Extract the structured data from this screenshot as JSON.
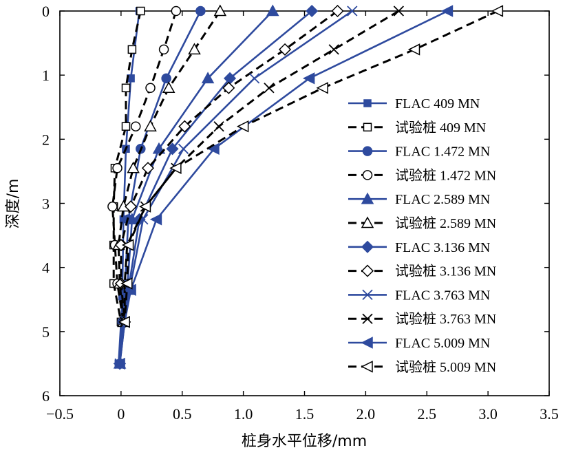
{
  "chart_data": {
    "type": "line",
    "xlabel": "桩身水平位移/mm",
    "ylabel": "深度/m",
    "xlim": [
      -0.5,
      3.5
    ],
    "ylim": [
      0,
      6
    ],
    "y_inverted": true,
    "x_ticks": [
      "−0.5",
      "0",
      "0.5",
      "1.0",
      "1.5",
      "2.0",
      "2.5",
      "3.0",
      "3.5"
    ],
    "y_ticks": [
      "0",
      "1",
      "2",
      "3",
      "4",
      "5",
      "6"
    ],
    "grid": false,
    "legend_position": "right",
    "colors": {
      "flac": "#2e4a9e",
      "test": "#000000"
    },
    "series": [
      {
        "name": "FLAC 409 MN",
        "group": "flac",
        "marker": "filled-square",
        "x": [
          0.15,
          0.08,
          0.04,
          0.02,
          0.01,
          0.0,
          -0.02
        ],
        "y": [
          0,
          1.05,
          2.15,
          3.25,
          4.45,
          4.85,
          5.5
        ]
      },
      {
        "name": "试验桩 409 MN",
        "group": "test",
        "marker": "open-square",
        "x": [
          0.16,
          0.09,
          0.04,
          0.04,
          -0.05,
          -0.06,
          -0.06,
          -0.06,
          0.0
        ],
        "y": [
          0,
          0.6,
          1.2,
          1.8,
          2.45,
          3.05,
          3.65,
          4.25,
          4.85
        ]
      },
      {
        "name": "FLAC 1.472 MN",
        "group": "flac",
        "marker": "filled-circle",
        "x": [
          0.65,
          0.37,
          0.16,
          0.06,
          0.03,
          0.01,
          -0.01
        ],
        "y": [
          0,
          1.05,
          2.15,
          3.25,
          4.35,
          4.85,
          5.5
        ]
      },
      {
        "name": "试验桩 1.472 MN",
        "group": "test",
        "marker": "open-circle",
        "x": [
          0.45,
          0.35,
          0.24,
          0.12,
          -0.03,
          -0.07,
          -0.05,
          -0.03,
          0.02
        ],
        "y": [
          0,
          0.6,
          1.2,
          1.8,
          2.45,
          3.05,
          3.65,
          4.25,
          4.85
        ]
      },
      {
        "name": "FLAC 2.589 MN",
        "group": "flac",
        "marker": "filled-triangle",
        "x": [
          1.24,
          0.71,
          0.31,
          0.09,
          0.05,
          0.02,
          -0.01
        ],
        "y": [
          0,
          1.05,
          2.15,
          3.25,
          4.35,
          4.85,
          5.5
        ]
      },
      {
        "name": "试验桩 2.589 MN",
        "group": "test",
        "marker": "open-triangle",
        "x": [
          0.81,
          0.6,
          0.39,
          0.24,
          0.1,
          0.02,
          -0.02,
          -0.01,
          0.02
        ],
        "y": [
          0,
          0.6,
          1.2,
          1.8,
          2.45,
          3.05,
          3.65,
          4.25,
          4.85
        ]
      },
      {
        "name": "FLAC 3.136 MN",
        "group": "flac",
        "marker": "filled-diamond",
        "x": [
          1.56,
          0.89,
          0.42,
          0.15,
          0.06,
          0.02,
          -0.01
        ],
        "y": [
          0,
          1.05,
          2.15,
          3.25,
          4.35,
          4.85,
          5.5
        ]
      },
      {
        "name": "试验桩 3.136 MN",
        "group": "test",
        "marker": "open-diamond",
        "x": [
          1.77,
          1.34,
          0.88,
          0.52,
          0.22,
          0.08,
          0.0,
          0.0,
          0.03
        ],
        "y": [
          0,
          0.6,
          1.2,
          1.8,
          2.45,
          3.05,
          3.65,
          4.25,
          4.85
        ]
      },
      {
        "name": "FLAC 3.763 MN",
        "group": "flac",
        "marker": "x",
        "x": [
          1.89,
          1.09,
          0.51,
          0.18,
          0.07,
          0.03,
          -0.01
        ],
        "y": [
          0,
          1.05,
          2.15,
          3.25,
          4.35,
          4.85,
          5.5
        ]
      },
      {
        "name": "试验桩 3.763 MN",
        "group": "test",
        "marker": "x",
        "x": [
          2.27,
          1.74,
          1.21,
          0.8,
          0.45,
          0.2,
          0.05,
          0.03,
          0.03
        ],
        "y": [
          0,
          0.6,
          1.2,
          1.8,
          2.45,
          3.05,
          3.65,
          4.25,
          4.85
        ]
      },
      {
        "name": "FLAC 5.009 MN",
        "group": "flac",
        "marker": "filled-left-triangle",
        "x": [
          2.67,
          1.54,
          0.76,
          0.29,
          0.08,
          0.03,
          -0.01
        ],
        "y": [
          0,
          1.05,
          2.15,
          3.25,
          4.35,
          4.85,
          5.5
        ]
      },
      {
        "name": "试验桩 5.009 MN",
        "group": "test",
        "marker": "open-left-triangle",
        "x": [
          3.08,
          2.4,
          1.65,
          1.0,
          0.45,
          0.2,
          0.06,
          0.05,
          0.03
        ],
        "y": [
          0,
          0.6,
          1.2,
          1.8,
          2.45,
          3.05,
          3.65,
          4.25,
          4.85
        ]
      }
    ]
  }
}
